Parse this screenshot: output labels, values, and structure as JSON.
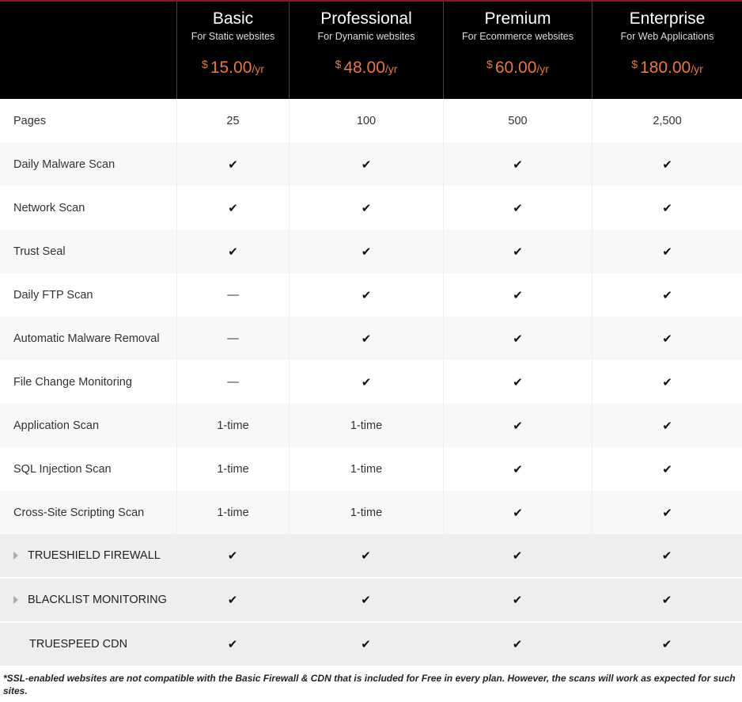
{
  "plans": [
    {
      "name": "Basic",
      "sub": "For Static websites",
      "currency": "$",
      "price": "15.00",
      "period": "/yr"
    },
    {
      "name": "Professional",
      "sub": "For Dynamic websites",
      "currency": "$",
      "price": "48.00",
      "period": "/yr"
    },
    {
      "name": "Premium",
      "sub": "For Ecommerce websites",
      "currency": "$",
      "price": "60.00",
      "period": "/yr"
    },
    {
      "name": "Enterprise",
      "sub": "For Web Applications",
      "currency": "$",
      "price": "180.00",
      "period": "/yr"
    }
  ],
  "rows": [
    {
      "label": "Pages",
      "values": [
        "25",
        "100",
        "500",
        "2,500"
      ]
    },
    {
      "label": "Daily Malware Scan",
      "values": [
        "✔",
        "✔",
        "✔",
        "✔"
      ]
    },
    {
      "label": "Network Scan",
      "values": [
        "✔",
        "✔",
        "✔",
        "✔"
      ]
    },
    {
      "label": "Trust Seal",
      "values": [
        "✔",
        "✔",
        "✔",
        "✔"
      ]
    },
    {
      "label": "Daily FTP Scan",
      "values": [
        "—",
        "✔",
        "✔",
        "✔"
      ]
    },
    {
      "label": "Automatic Malware Removal",
      "values": [
        "—",
        "✔",
        "✔",
        "✔"
      ]
    },
    {
      "label": "File Change Monitoring",
      "values": [
        "—",
        "✔",
        "✔",
        "✔"
      ]
    },
    {
      "label": "Application Scan",
      "values": [
        "1-time",
        "1-time",
        "✔",
        "✔"
      ]
    },
    {
      "label": "SQL Injection Scan",
      "values": [
        "1-time",
        "1-time",
        "✔",
        "✔"
      ]
    },
    {
      "label": "Cross-Site Scripting Scan",
      "values": [
        "1-time",
        "1-time",
        "✔",
        "✔"
      ]
    }
  ],
  "features": [
    {
      "label": "TRUESHIELD FIREWALL",
      "expandable": true,
      "values": [
        "✔",
        "✔",
        "✔",
        "✔"
      ]
    },
    {
      "label": "BLACKLIST MONITORING",
      "expandable": true,
      "values": [
        "✔",
        "✔",
        "✔",
        "✔"
      ]
    },
    {
      "label": "TRUESPEED CDN",
      "expandable": false,
      "values": [
        "✔",
        "✔",
        "✔",
        "✔"
      ]
    }
  ],
  "footnote": "*SSL-enabled websites are not compatible with the Basic Firewall & CDN that is included for Free in every plan. However, the scans will work as expected for such sites.",
  "colors": {
    "accent": "#e8793a",
    "header_bg": "#000000",
    "top_border": "#8b1a1a"
  }
}
